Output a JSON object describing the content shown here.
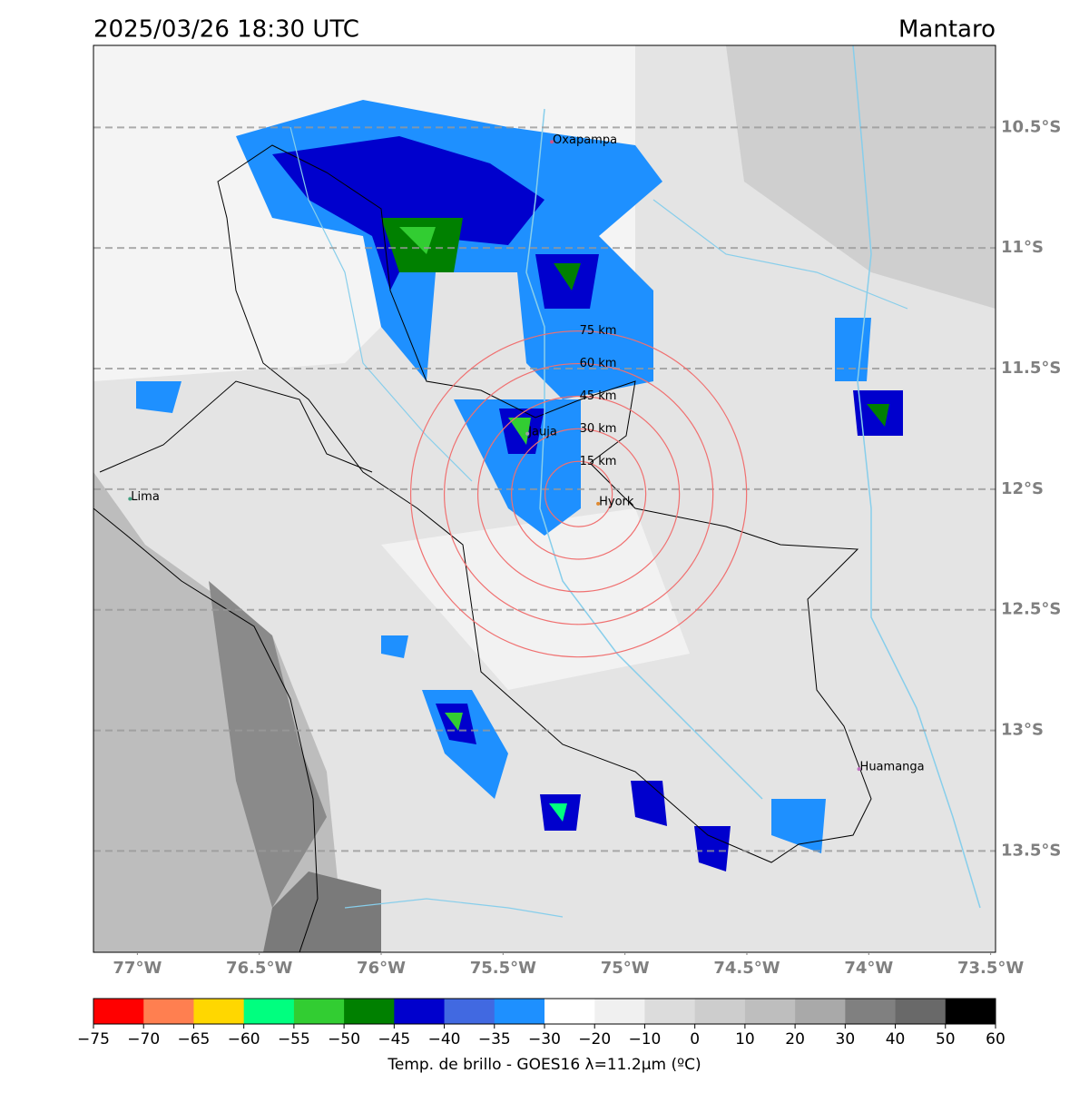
{
  "header": {
    "title": "2025/03/26 18:30 UTC",
    "region": "Mantaro"
  },
  "map": {
    "lonlim": [
      -77.18,
      -73.48
    ],
    "latlim": [
      -10.16,
      -13.92
    ],
    "grid": true,
    "lon_ticks": [
      {
        "value": -77,
        "label": "77°W"
      },
      {
        "value": -76.5,
        "label": "76.5°W"
      },
      {
        "value": -76,
        "label": "76°W"
      },
      {
        "value": -75.5,
        "label": "75.5°W"
      },
      {
        "value": -75,
        "label": "75°W"
      },
      {
        "value": -74.5,
        "label": "74.5°W"
      },
      {
        "value": -74,
        "label": "74°W"
      },
      {
        "value": -73.5,
        "label": "73.5°W"
      }
    ],
    "lat_ticks": [
      {
        "value": -10.5,
        "label": "10.5°S"
      },
      {
        "value": -11,
        "label": "11°S"
      },
      {
        "value": -11.5,
        "label": "11.5°S"
      },
      {
        "value": -12,
        "label": "12°S"
      },
      {
        "value": -12.5,
        "label": "12.5°S"
      },
      {
        "value": -13,
        "label": "13°S"
      },
      {
        "value": -13.5,
        "label": "13.5°S"
      }
    ],
    "places": [
      {
        "name": "Oxapampa",
        "lon": -75.3,
        "lat": -10.56,
        "color": "#d0508a"
      },
      {
        "name": "Lima",
        "lon": -77.03,
        "lat": -12.04,
        "color": "#40a080"
      },
      {
        "name": "Jauja",
        "lon": -75.4,
        "lat": -11.77,
        "color": "#a0a0a0"
      },
      {
        "name": "Hyork",
        "lon": -75.11,
        "lat": -12.06,
        "color": "#e08a30"
      },
      {
        "name": "Huamanga",
        "lon": -74.04,
        "lat": -13.16,
        "color": "#c070c0"
      }
    ],
    "rings": {
      "center_lon": -75.19,
      "center_lat": -12.02,
      "color": "#f07070",
      "radii_km": [
        {
          "value": 15,
          "label": "15 km"
        },
        {
          "value": 30,
          "label": "30 km"
        },
        {
          "value": 45,
          "label": "45 km"
        },
        {
          "value": 60,
          "label": "60 km"
        },
        {
          "value": 75,
          "label": "75 km"
        }
      ]
    }
  },
  "colorbar": {
    "label": "Temp. de brillo - GOES16 λ=11.2μm (ºC)",
    "bounds": [
      {
        "value": -75,
        "label": "−75"
      },
      {
        "value": -70,
        "label": "−70"
      },
      {
        "value": -65,
        "label": "−65"
      },
      {
        "value": -60,
        "label": "−60"
      },
      {
        "value": -55,
        "label": "−55"
      },
      {
        "value": -50,
        "label": "−50"
      },
      {
        "value": -45,
        "label": "−45"
      },
      {
        "value": -40,
        "label": "−40"
      },
      {
        "value": -35,
        "label": "−35"
      },
      {
        "value": -30,
        "label": "−30"
      },
      {
        "value": -20,
        "label": "−20"
      },
      {
        "value": -10,
        "label": "−10"
      },
      0,
      10,
      20,
      30,
      40,
      50,
      60
    ],
    "colors": [
      "#ff0000",
      "#ff7f50",
      "#ffd700",
      "#00ff7f",
      "#32cd32",
      "#008000",
      "#0000cd",
      "#4169e1",
      "#1e90ff",
      "#ffffff",
      "#f0f0f0",
      "#dcdcdc",
      "#cdcdcd",
      "#bebebe",
      "#a9a9a9",
      "#808080",
      "#696969",
      "#000000"
    ]
  }
}
